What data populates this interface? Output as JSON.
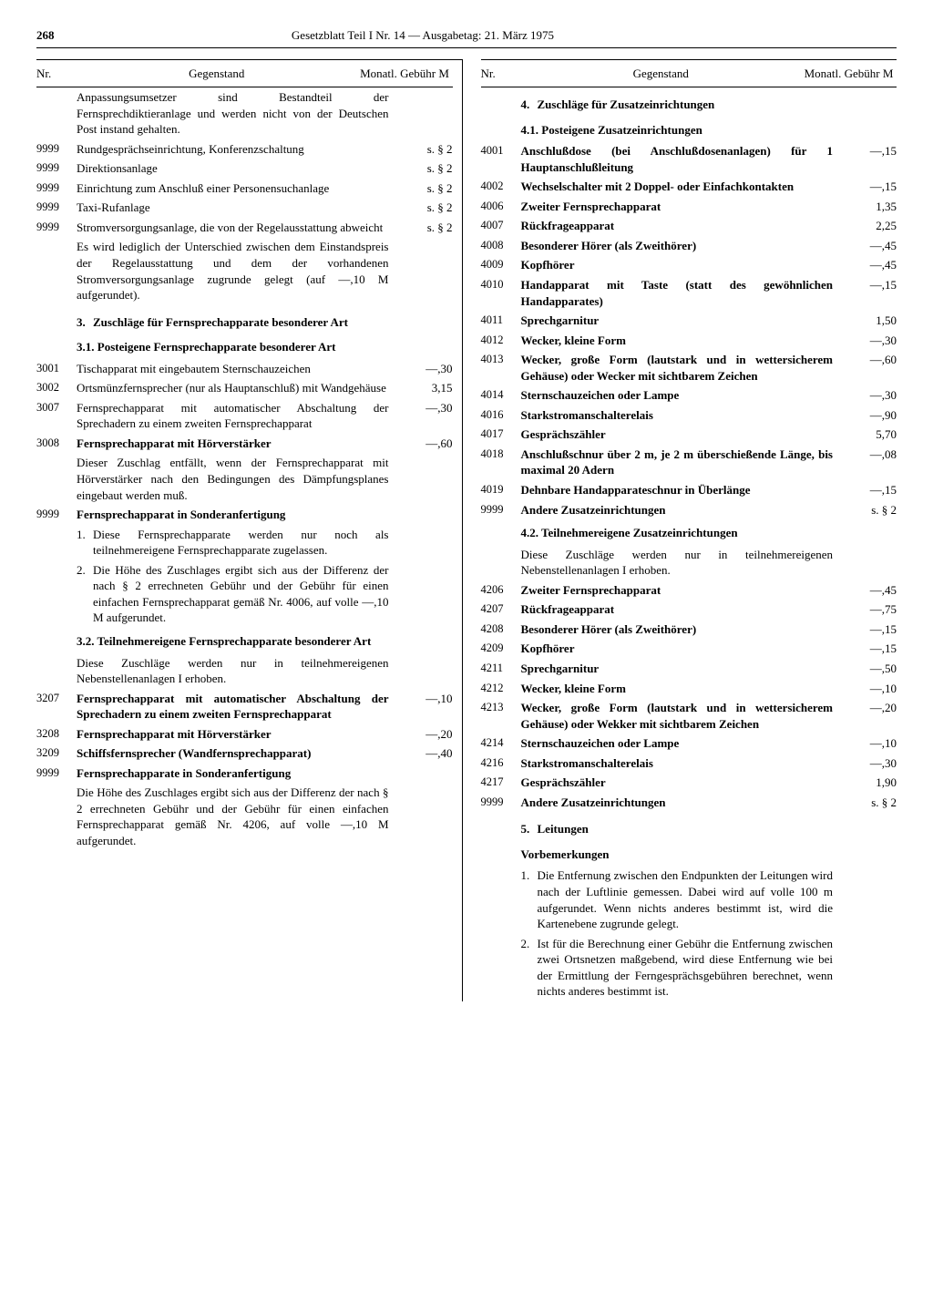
{
  "page": {
    "number": "268",
    "title": "Gesetzblatt Teil I Nr. 14 — Ausgabetag: 21. März 1975"
  },
  "headers": {
    "nr": "Nr.",
    "gegenstand": "Gegenstand",
    "gebuehr": "Monatl. Gebühr M"
  },
  "left": [
    {
      "nr": "",
      "txt": "Anpassungsumsetzer sind Bestandteil der Fernsprechdiktieranlage und werden nicht von der Deutschen Post instand gehalten.",
      "fee": ""
    },
    {
      "nr": "9999",
      "txt": "Rundgesprächseinrichtung, Konferenzschaltung",
      "fee": "s. § 2"
    },
    {
      "nr": "9999",
      "txt": "Direktionsanlage",
      "fee": "s. § 2"
    },
    {
      "nr": "9999",
      "txt": "Einrichtung zum Anschluß einer Personensuchanlage",
      "fee": "s. § 2"
    },
    {
      "nr": "9999",
      "txt": "Taxi-Rufanlage",
      "fee": "s. § 2"
    },
    {
      "nr": "9999",
      "txt": "Stromversorgungsanlage, die von der Regelausstattung abweicht",
      "fee": "s. § 2"
    },
    {
      "nr": "",
      "txt": "Es wird lediglich der Unterschied zwischen dem Einstandspreis der Regelausstattung und dem der vorhandenen Stromversorgungsanlage zugrunde gelegt (auf —,10 M aufgerundet).",
      "fee": ""
    },
    {
      "nr": "",
      "type": "section",
      "num": "3.",
      "txt": "Zuschläge für Fernsprechapparate besonderer Art"
    },
    {
      "nr": "",
      "type": "subhead",
      "txt": "3.1. Posteigene Fernsprechapparate besonderer Art"
    },
    {
      "nr": "3001",
      "txt": "Tischapparat mit eingebautem Sternschauzeichen",
      "fee": "—,30"
    },
    {
      "nr": "3002",
      "txt": "Ortsmünzfernsprecher (nur als Hauptanschluß) mit Wandgehäuse",
      "fee": "3,15"
    },
    {
      "nr": "3007",
      "txt": "Fernsprechapparat mit automatischer Abschaltung der Sprechadern zu einem zweiten Fernsprechapparat",
      "fee": "—,30"
    },
    {
      "nr": "3008",
      "txt": "Fernsprechapparat mit Hörverstärker",
      "fee": "—,60",
      "bold": true
    },
    {
      "nr": "",
      "txt": "Dieser Zuschlag entfällt, wenn der Fernsprechapparat mit Hörverstärker nach den Bedingungen des Dämpfungsplanes eingebaut werden muß.",
      "fee": ""
    },
    {
      "nr": "9999",
      "txt": "Fernsprechapparat in Sonderanfertigung",
      "fee": "",
      "bold": true
    },
    {
      "nr": "",
      "type": "numnote",
      "num": "1.",
      "txt": "Diese Fernsprechapparate werden nur noch als teilnehmereigene Fernsprechapparate zugelassen."
    },
    {
      "nr": "",
      "type": "numnote",
      "num": "2.",
      "txt": "Die Höhe des Zuschlages ergibt sich aus der Differenz der nach § 2 errechneten Gebühr und der Gebühr für einen einfachen Fernsprechapparat gemäß Nr. 4006, auf volle —,10 M aufgerundet."
    },
    {
      "nr": "",
      "type": "subhead",
      "txt": "3.2. Teilnehmereigene Fernsprechapparate besonderer Art"
    },
    {
      "nr": "",
      "txt": "Diese Zuschläge werden nur in teilnehmereigenen Nebenstellenanlagen I erhoben.",
      "fee": ""
    },
    {
      "nr": "3207",
      "txt": "Fernsprechapparat mit automatischer Abschaltung der Sprechadern zu einem zweiten Fernsprechapparat",
      "fee": "—,10",
      "bold": true
    },
    {
      "nr": "3208",
      "txt": "Fernsprechapparat mit Hörverstärker",
      "fee": "—,20",
      "bold": true
    },
    {
      "nr": "3209",
      "txt": "Schiffsfernsprecher (Wandfernsprechapparat)",
      "fee": "—,40",
      "bold": true
    },
    {
      "nr": "9999",
      "txt": "Fernsprechapparate in Sonderanfertigung",
      "fee": "",
      "bold": true
    },
    {
      "nr": "",
      "txt": "Die Höhe des Zuschlages ergibt sich aus der Differenz der nach § 2 errechneten Gebühr und der Gebühr für einen einfachen Fernsprechapparat gemäß Nr. 4206, auf volle —,10 M aufgerundet.",
      "fee": ""
    }
  ],
  "right": [
    {
      "nr": "",
      "type": "section",
      "num": "4.",
      "txt": "Zuschläge für Zusatzeinrichtungen"
    },
    {
      "nr": "",
      "type": "subhead",
      "txt": "4.1. Posteigene Zusatzeinrichtungen"
    },
    {
      "nr": "4001",
      "txt": "Anschlußdose (bei Anschlußdosenanlagen) für 1 Hauptanschlußleitung",
      "fee": "—,15",
      "bold": true
    },
    {
      "nr": "4002",
      "txt": "Wechselschalter mit 2 Doppel- oder Einfachkontakten",
      "fee": "—,15",
      "bold": true
    },
    {
      "nr": "4006",
      "txt": "Zweiter Fernsprechapparat",
      "fee": "1,35",
      "bold": true
    },
    {
      "nr": "4007",
      "txt": "Rückfrageapparat",
      "fee": "2,25",
      "bold": true
    },
    {
      "nr": "4008",
      "txt": "Besonderer Hörer (als Zweithörer)",
      "fee": "—,45",
      "bold": true
    },
    {
      "nr": "4009",
      "txt": "Kopfhörer",
      "fee": "—,45",
      "bold": true
    },
    {
      "nr": "4010",
      "txt": "Handapparat mit Taste (statt des gewöhnlichen Handapparates)",
      "fee": "—,15",
      "bold": true
    },
    {
      "nr": "4011",
      "txt": "Sprechgarnitur",
      "fee": "1,50",
      "bold": true
    },
    {
      "nr": "4012",
      "txt": "Wecker, kleine Form",
      "fee": "—,30",
      "bold": true
    },
    {
      "nr": "4013",
      "txt": "Wecker, große Form (lautstark und in wettersicherem Gehäuse) oder Wecker mit sichtbarem Zeichen",
      "fee": "—,60",
      "bold": true
    },
    {
      "nr": "4014",
      "txt": "Sternschauzeichen oder Lampe",
      "fee": "—,30",
      "bold": true
    },
    {
      "nr": "4016",
      "txt": "Starkstromanschalterelais",
      "fee": "—,90",
      "bold": true
    },
    {
      "nr": "4017",
      "txt": "Gesprächszähler",
      "fee": "5,70",
      "bold": true
    },
    {
      "nr": "4018",
      "txt": "Anschlußschnur über 2 m, je 2 m überschießende Länge, bis maximal 20 Adern",
      "fee": "—,08",
      "bold": true
    },
    {
      "nr": "4019",
      "txt": "Dehnbare Handapparateschnur in Überlänge",
      "fee": "—,15",
      "bold": true
    },
    {
      "nr": "9999",
      "txt": "Andere Zusatzeinrichtungen",
      "fee": "s. § 2",
      "bold": true
    },
    {
      "nr": "",
      "type": "subhead",
      "txt": "4.2. Teilnehmereigene Zusatzeinrichtungen"
    },
    {
      "nr": "",
      "txt": "Diese Zuschläge werden nur in teilnehmereigenen Nebenstellenanlagen I erhoben.",
      "fee": ""
    },
    {
      "nr": "4206",
      "txt": "Zweiter Fernsprechapparat",
      "fee": "—,45",
      "bold": true
    },
    {
      "nr": "4207",
      "txt": "Rückfrageapparat",
      "fee": "—,75",
      "bold": true
    },
    {
      "nr": "4208",
      "txt": "Besonderer Hörer (als Zweithörer)",
      "fee": "—,15",
      "bold": true
    },
    {
      "nr": "4209",
      "txt": "Kopfhörer",
      "fee": "—,15",
      "bold": true
    },
    {
      "nr": "4211",
      "txt": "Sprechgarnitur",
      "fee": "—,50",
      "bold": true
    },
    {
      "nr": "4212",
      "txt": "Wecker, kleine Form",
      "fee": "—,10",
      "bold": true
    },
    {
      "nr": "4213",
      "txt": "Wecker, große Form (lautstark und in wettersicherem Gehäuse) oder Wekker mit sichtbarem Zeichen",
      "fee": "—,20",
      "bold": true
    },
    {
      "nr": "4214",
      "txt": "Sternschauzeichen oder Lampe",
      "fee": "—,10",
      "bold": true
    },
    {
      "nr": "4216",
      "txt": "Starkstromanschalterelais",
      "fee": "—,30",
      "bold": true
    },
    {
      "nr": "4217",
      "txt": "Gesprächszähler",
      "fee": "1,90",
      "bold": true
    },
    {
      "nr": "9999",
      "txt": "Andere Zusatzeinrichtungen",
      "fee": "s. § 2",
      "bold": true
    },
    {
      "nr": "",
      "type": "section",
      "num": "5.",
      "txt": "Leitungen"
    },
    {
      "nr": "",
      "type": "subhead",
      "txt": "Vorbemerkungen"
    },
    {
      "nr": "",
      "type": "numnote",
      "num": "1.",
      "txt": "Die Entfernung zwischen den Endpunkten der Leitungen wird nach der Luftlinie gemessen. Dabei wird auf volle 100 m aufgerundet. Wenn nichts anderes bestimmt ist, wird die Kartenebene zugrunde gelegt."
    },
    {
      "nr": "",
      "type": "numnote",
      "num": "2.",
      "txt": "Ist für die Berechnung einer Gebühr die Entfernung zwischen zwei Ortsnetzen maßgebend, wird diese Entfernung wie bei der Ermittlung der Ferngesprächsgebühren berechnet, wenn nichts anderes bestimmt ist."
    }
  ]
}
